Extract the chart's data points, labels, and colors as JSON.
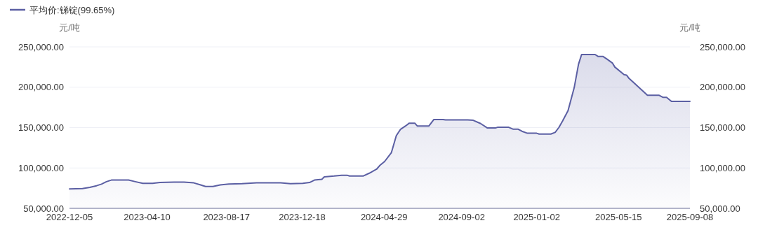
{
  "chart_data": {
    "type": "area",
    "ylabel": "元/吨",
    "y2label": "元/吨",
    "legend": "top left",
    "grid": "y",
    "x": [
      "2022-12-05",
      "2022-12-26",
      "2023-01-07",
      "2023-01-18",
      "2023-01-26",
      "2023-02-03",
      "2023-02-11",
      "2023-03-11",
      "2023-03-22",
      "2023-04-03",
      "2023-04-19",
      "2023-05-01",
      "2023-05-24",
      "2023-06-09",
      "2023-06-25",
      "2023-07-06",
      "2023-07-14",
      "2023-07-26",
      "2023-08-07",
      "2023-08-21",
      "2023-09-11",
      "2023-10-05",
      "2023-11-13",
      "2023-11-29",
      "2023-12-19",
      "2023-12-30",
      "2024-01-07",
      "2024-01-19",
      "2024-01-23",
      "2024-02-08",
      "2024-02-20",
      "2024-02-29",
      "2024-03-04",
      "2024-03-26",
      "2024-04-05",
      "2024-04-17",
      "2024-04-22",
      "2024-04-30",
      "2024-05-11",
      "2024-05-19",
      "2024-05-26",
      "2024-06-03",
      "2024-06-09",
      "2024-06-18",
      "2024-06-22",
      "2024-07-11",
      "2024-07-19",
      "2024-08-03",
      "2024-08-07",
      "2024-09-12",
      "2024-09-21",
      "2024-10-03",
      "2024-10-14",
      "2024-10-27",
      "2024-10-31",
      "2024-11-17",
      "2024-11-25",
      "2024-12-03",
      "2024-12-09",
      "2024-12-18",
      "2025-01-02",
      "2025-01-06",
      "2025-01-25",
      "2025-02-01",
      "2025-02-07",
      "2025-02-13",
      "2025-02-22",
      "2025-03-04",
      "2025-03-11",
      "2025-03-16",
      "2025-04-07",
      "2025-04-12",
      "2025-04-20",
      "2025-04-26",
      "2025-05-05",
      "2025-05-09",
      "2025-05-24",
      "2025-05-28",
      "2025-06-01",
      "2025-07-01",
      "2025-07-20",
      "2025-07-26",
      "2025-08-01",
      "2025-08-09",
      "2025-09-08"
    ],
    "series": [
      {
        "name": "平均价:锑锭(99.65%)",
        "color": "#5b5fa3",
        "values": [
          74000,
          74500,
          76000,
          78000,
          80000,
          83000,
          85000,
          85000,
          83000,
          81000,
          81000,
          82000,
          82500,
          82500,
          81500,
          79000,
          77000,
          77000,
          79000,
          80000,
          80500,
          81500,
          81500,
          80500,
          81000,
          82000,
          85000,
          86000,
          89000,
          90000,
          91000,
          91000,
          90000,
          90000,
          93500,
          98500,
          103000,
          108000,
          119000,
          140000,
          148000,
          152000,
          155500,
          155500,
          152000,
          152000,
          160000,
          160000,
          159500,
          159500,
          159000,
          155000,
          149500,
          149500,
          150500,
          150500,
          148000,
          148000,
          145500,
          143000,
          143000,
          142000,
          142000,
          144000,
          150000,
          158000,
          171000,
          199500,
          228500,
          240500,
          240500,
          238000,
          238000,
          235000,
          230000,
          225000,
          215500,
          215000,
          211000,
          190000,
          190000,
          187500,
          187500,
          182500,
          182500
        ]
      }
    ],
    "xlim": [
      "2022-12-05",
      "2025-09-08"
    ],
    "xticks": [
      "2022-12-05",
      "2023-04-10",
      "2023-08-17",
      "2023-12-18",
      "2024-04-29",
      "2024-09-02",
      "2025-01-02",
      "2025-05-15",
      "2025-09-08"
    ],
    "ylim": [
      50000,
      250000
    ],
    "yticks": [
      {
        "value": 50000,
        "label": "50,000.00"
      },
      {
        "value": 100000,
        "label": "100,000.00"
      },
      {
        "value": 150000,
        "label": "150,000.00"
      },
      {
        "value": 200000,
        "label": "200,000.00"
      },
      {
        "value": 250000,
        "label": "250,000.00"
      }
    ],
    "y2lim": [
      50000,
      250000
    ],
    "y2ticks": [
      {
        "value": 50000,
        "label": "50,000.00"
      },
      {
        "value": 100000,
        "label": "100,000.00"
      },
      {
        "value": 150000,
        "label": "150,000.00"
      },
      {
        "value": 200000,
        "label": "200,000.00"
      },
      {
        "value": 250000,
        "label": "250,000.00"
      }
    ]
  }
}
